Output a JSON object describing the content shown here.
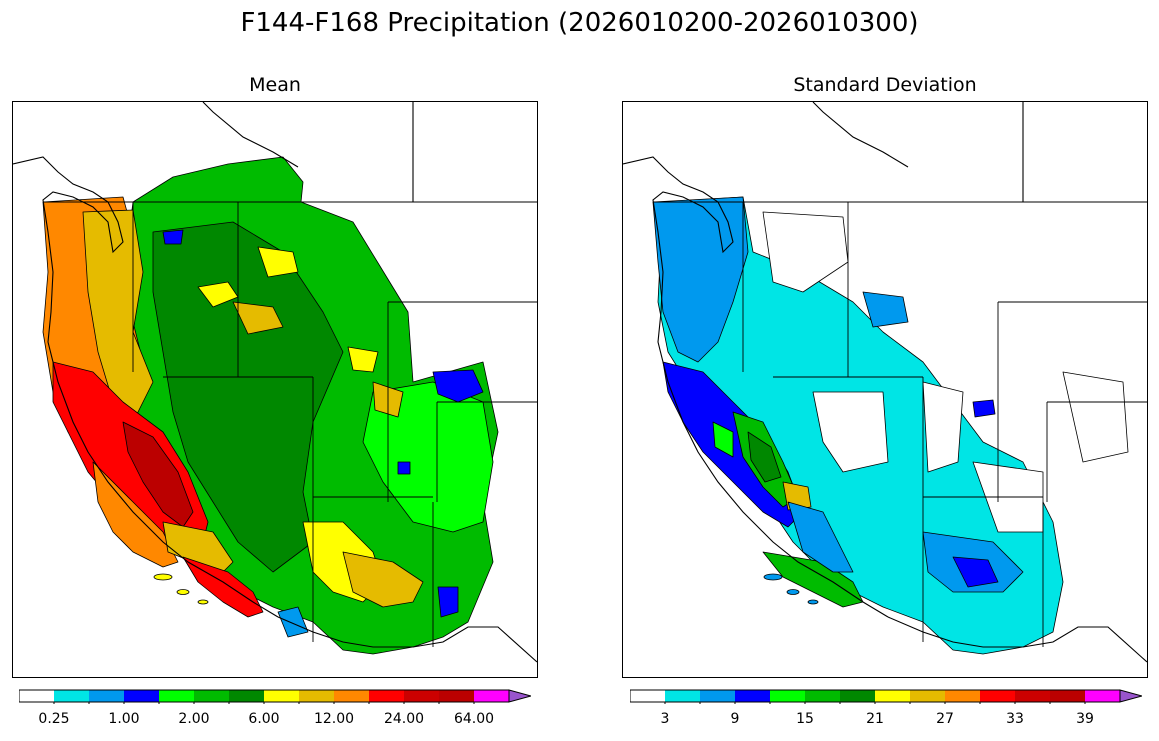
{
  "figure": {
    "title": "F144-F168 Precipitation (2026010200-2026010300)"
  },
  "panels": {
    "mean": {
      "title": "Mean",
      "colorbar": {
        "colors": [
          "#ffffff",
          "#00e5e5",
          "#0099ee",
          "#0000ff",
          "#00ff00",
          "#00bb00",
          "#008800",
          "#ffff00",
          "#e5bb00",
          "#ff8800",
          "#ff0000",
          "#cc0000",
          "#bb0000",
          "#ff00ff",
          "#9955cc"
        ],
        "tick_labels": [
          "0.25",
          "1.00",
          "2.00",
          "6.00",
          "12.00",
          "24.00",
          "64.00"
        ],
        "extend": "max"
      }
    },
    "stddev": {
      "title": "Standard Deviation",
      "colorbar": {
        "colors": [
          "#ffffff",
          "#00e5e5",
          "#0099ee",
          "#0000ff",
          "#00ff00",
          "#00bb00",
          "#008800",
          "#ffff00",
          "#e5bb00",
          "#ff8800",
          "#ff0000",
          "#cc0000",
          "#bb0000",
          "#ff00ff",
          "#9955cc"
        ],
        "tick_labels": [
          "3",
          "9",
          "15",
          "21",
          "27",
          "33",
          "39"
        ],
        "extend": "max"
      }
    }
  }
}
